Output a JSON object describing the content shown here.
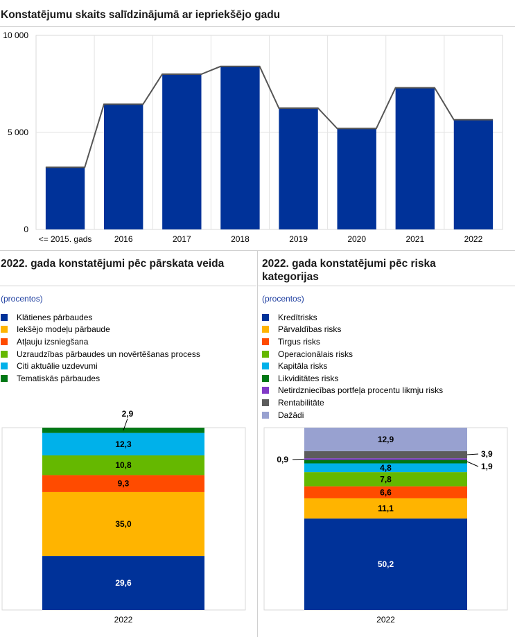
{
  "chart_data": [
    {
      "type": "bar",
      "title": "Konstatējumu skaits salīdzinājumā ar iepriekšējo gadu",
      "categories": [
        "<= 2015. gads",
        "2016",
        "2017",
        "2018",
        "2019",
        "2020",
        "2021",
        "2022"
      ],
      "values": [
        3200,
        6450,
        8000,
        8400,
        6250,
        5200,
        7300,
        5650
      ],
      "ylim": [
        0,
        10000
      ],
      "yticks": [
        0,
        5000,
        10000
      ],
      "ytick_labels": [
        "0",
        "5 000",
        "10 000"
      ],
      "grid": true,
      "bar_color": "#003299",
      "line_color": "#555555"
    },
    {
      "type": "stacked-bar",
      "title": "2022. gada konstatējumi pēc pārskata veida",
      "subtitle": "(procentos)",
      "categories": [
        "2022"
      ],
      "series": [
        {
          "name": "Klātienes pārbaudes",
          "value": 29.6,
          "label": "29,6",
          "color": "#003299"
        },
        {
          "name": "Iekšējo modeļu pārbaude",
          "value": 35.0,
          "label": "35,0",
          "color": "#FFB400"
        },
        {
          "name": "Atļauju izsniegšana",
          "value": 9.3,
          "label": "9,3",
          "color": "#FF4B00"
        },
        {
          "name": "Uzraudzības pārbaudes un novērtēšanas process",
          "value": 10.8,
          "label": "10,8",
          "color": "#65B800"
        },
        {
          "name": "Citi aktuālie uzdevumi",
          "value": 12.3,
          "label": "12,3",
          "color": "#00B1EA"
        },
        {
          "name": "Tematiskās pārbaudes",
          "value": 2.9,
          "label": "2,9",
          "color": "#007816"
        }
      ]
    },
    {
      "type": "stacked-bar",
      "title": "2022. gada konstatējumi pēc riska kategorijas",
      "subtitle": "(procentos)",
      "categories": [
        "2022"
      ],
      "series": [
        {
          "name": "Kredītrisks",
          "value": 50.2,
          "label": "50,2",
          "color": "#003299"
        },
        {
          "name": "Pārvaldības risks",
          "value": 11.1,
          "label": "11,1",
          "color": "#FFB400"
        },
        {
          "name": "Tirgus risks",
          "value": 6.6,
          "label": "6,6",
          "color": "#FF4B00"
        },
        {
          "name": "Operacionālais risks",
          "value": 7.8,
          "label": "7,8",
          "color": "#65B800"
        },
        {
          "name": "Kapitāla risks",
          "value": 4.8,
          "label": "4,8",
          "color": "#00B1EA"
        },
        {
          "name": "Likviditātes risks",
          "value": 1.9,
          "label": "1,9",
          "color": "#007816"
        },
        {
          "name": "Netirdzniecības portfeļa procentu likmju risks",
          "value": 0.9,
          "label": "0,9",
          "color": "#8139C6"
        },
        {
          "name": "Rentabilitāte",
          "value": 3.9,
          "label": "3,9",
          "color": "#5C5C5C"
        },
        {
          "name": "Dažādi",
          "value": 12.9,
          "label": "12,9",
          "color": "#98A1D0"
        }
      ]
    }
  ]
}
